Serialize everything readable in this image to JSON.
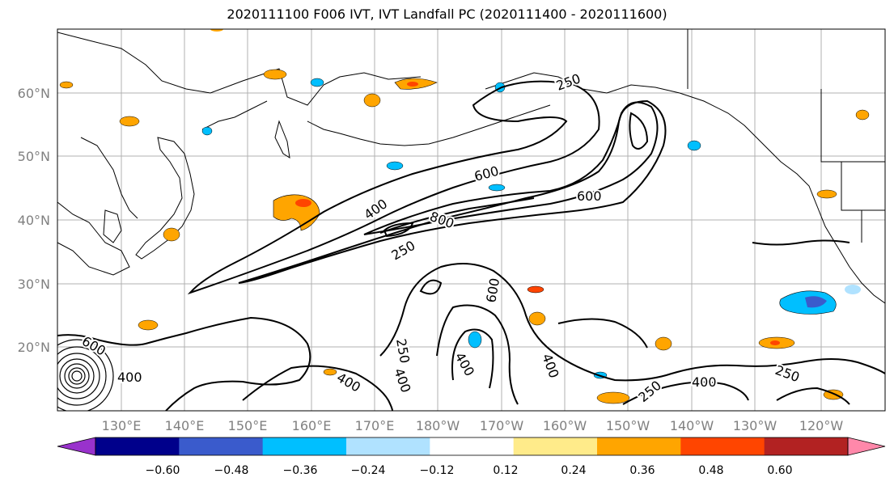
{
  "title": "2020111100 F006 IVT, IVT Landfall PC (2020111400 - 2020111600)",
  "map": {
    "lat_labels": [
      "60°N",
      "50°N",
      "40°N",
      "30°N",
      "20°N"
    ],
    "lon_labels": [
      "130°E",
      "140°E",
      "150°E",
      "160°E",
      "170°E",
      "180°W",
      "170°W",
      "160°W",
      "150°W",
      "140°W",
      "130°W",
      "120°W"
    ],
    "contour_labels": [
      "250",
      "400",
      "600",
      "800",
      "600",
      "400",
      "250",
      "600",
      "400",
      "250",
      "400",
      "250",
      "400",
      "400",
      "250",
      "600",
      "400"
    ],
    "colors": {
      "land_outline": "#000000",
      "contour": "#000000",
      "grid": "#b0b0b0",
      "tick_label": "#808080"
    }
  },
  "colorbar": {
    "ticks": [
      "−0.60",
      "−0.48",
      "−0.36",
      "−0.24",
      "−0.12",
      "0.12",
      "0.24",
      "0.36",
      "0.48",
      "0.60"
    ],
    "colors": [
      "#9932cc",
      "#00008b",
      "#3a5bcc",
      "#00bfff",
      "#b0e2ff",
      "#ffffff",
      "#ffeb8a",
      "#ffa500",
      "#ff4500",
      "#b22222",
      "#ff88aa"
    ]
  }
}
